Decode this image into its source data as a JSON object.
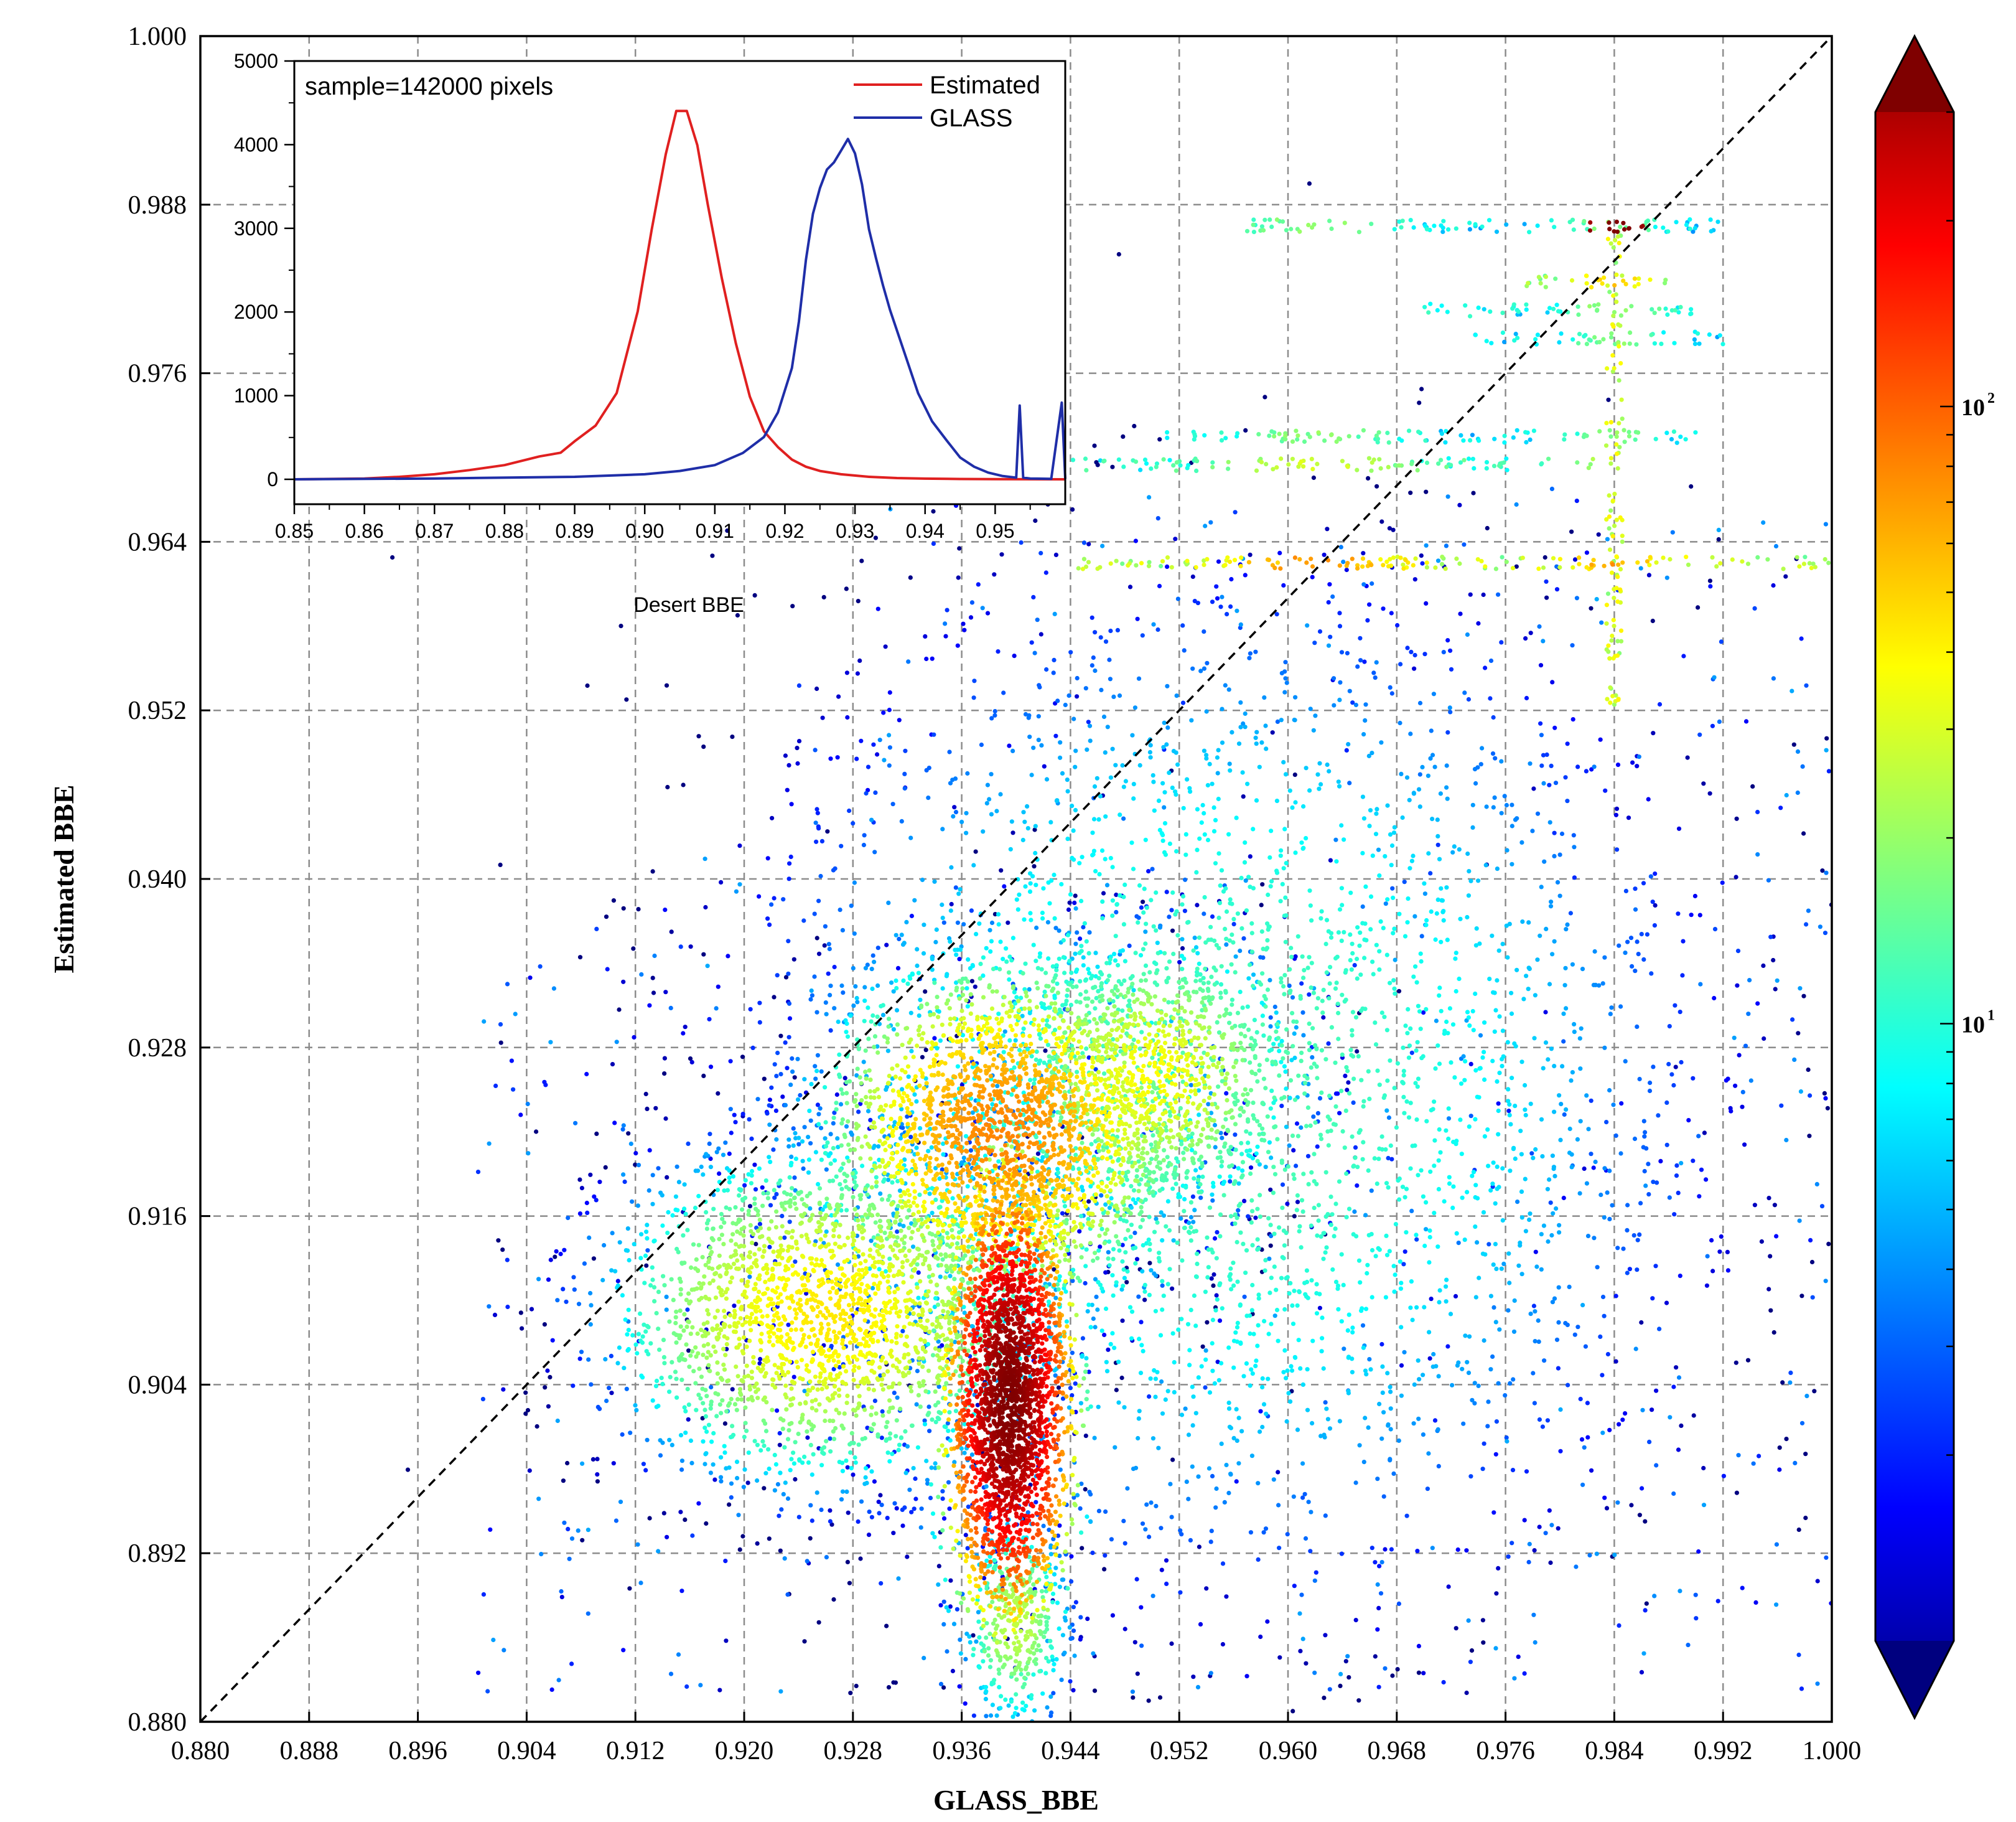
{
  "chart_data": [
    {
      "type": "scatter",
      "title": "",
      "xlabel": "GLASS_BBE",
      "ylabel": "Estimated BBE",
      "xlim": [
        0.88,
        1.0
      ],
      "ylim": [
        0.88,
        1.0
      ],
      "x_ticks": [
        "0.880",
        "0.888",
        "0.896",
        "0.904",
        "0.912",
        "0.920",
        "0.928",
        "0.936",
        "0.944",
        "0.952",
        "0.960",
        "0.968",
        "0.976",
        "0.984",
        "0.992",
        "1.000"
      ],
      "y_ticks": [
        "0.880",
        "0.892",
        "0.904",
        "0.916",
        "0.928",
        "0.940",
        "0.952",
        "0.964",
        "0.976",
        "0.988",
        "1.000"
      ],
      "grid": true,
      "reference_line": "1:1",
      "colorbar": {
        "scale": "log",
        "ticks": [
          {
            "base": "10",
            "exp": "1",
            "value": 10
          },
          {
            "base": "10",
            "exp": "2",
            "value": 100
          }
        ],
        "range": [
          1,
          300
        ],
        "extend": "both"
      },
      "density_clusters": [
        {
          "x": 0.9395,
          "y": 0.903,
          "sx": 0.0022,
          "sy": 0.0075,
          "density": 300,
          "n": 2600
        },
        {
          "x": 0.939,
          "y": 0.922,
          "sx": 0.0065,
          "sy": 0.006,
          "density": 70,
          "n": 2200
        },
        {
          "x": 0.926,
          "y": 0.909,
          "sx": 0.008,
          "sy": 0.006,
          "density": 40,
          "n": 2200
        },
        {
          "x": 0.95,
          "y": 0.926,
          "sx": 0.0055,
          "sy": 0.005,
          "density": 35,
          "n": 1100
        },
        {
          "x": 0.955,
          "y": 0.925,
          "sx": 0.018,
          "sy": 0.018,
          "density": 14,
          "n": 3000
        },
        {
          "x": 0.94,
          "y": 0.887,
          "sx": 0.002,
          "sy": 0.004,
          "density": 25,
          "n": 400
        }
      ],
      "sparse_region": {
        "xmin": 0.9,
        "xmax": 1.0,
        "ymin": 0.882,
        "ymax": 0.968,
        "density": 3,
        "n": 900
      },
      "horizontal_streaks": [
        {
          "y": 0.9625,
          "x_from": 0.944,
          "x_to": 1.0,
          "density": 40
        },
        {
          "y": 0.9695,
          "x_from": 0.944,
          "x_to": 0.983,
          "density": 18
        },
        {
          "y": 0.9715,
          "x_from": 0.951,
          "x_to": 0.99,
          "density": 12
        },
        {
          "y": 0.9785,
          "x_from": 0.973,
          "x_to": 0.992,
          "density": 12
        },
        {
          "y": 0.9805,
          "x_from": 0.97,
          "x_to": 0.99,
          "density": 14
        },
        {
          "y": 0.9825,
          "x_from": 0.977,
          "x_to": 0.988,
          "density": 30
        },
        {
          "y": 0.9865,
          "x_from": 0.957,
          "x_to": 0.992,
          "density": 12
        },
        {
          "y": 0.9865,
          "x_from": 0.982,
          "x_to": 0.987,
          "density": 250
        }
      ],
      "vertical_streaks": [
        {
          "x": 0.984,
          "y_from": 0.952,
          "y_to": 0.986,
          "density": 35
        }
      ]
    },
    {
      "type": "line",
      "title": "",
      "annotation": "sample=142000 pixels",
      "xlabel": "Desert BBE",
      "ylabel": "",
      "xlim": [
        0.85,
        0.96
      ],
      "ylim": [
        0,
        5000
      ],
      "x_ticks": [
        "0.85",
        "0.86",
        "0.87",
        "0.88",
        "0.89",
        "0.90",
        "0.91",
        "0.92",
        "0.93",
        "0.94",
        "0.95"
      ],
      "y_ticks": [
        "0",
        "1000",
        "2000",
        "3000",
        "4000",
        "5000"
      ],
      "legend": "top-right",
      "series": [
        {
          "name": "Estimated",
          "color": "#e02020",
          "x": [
            0.85,
            0.86,
            0.865,
            0.87,
            0.875,
            0.88,
            0.885,
            0.888,
            0.89,
            0.893,
            0.896,
            0.899,
            0.901,
            0.903,
            0.9045,
            0.906,
            0.9075,
            0.909,
            0.911,
            0.913,
            0.915,
            0.917,
            0.919,
            0.921,
            0.923,
            0.925,
            0.928,
            0.932,
            0.936,
            0.94,
            0.945,
            0.95,
            0.96
          ],
          "y": [
            0,
            10,
            30,
            60,
            110,
            170,
            250,
            320,
            430,
            620,
            1050,
            2000,
            3000,
            3900,
            4400,
            4380,
            4000,
            3300,
            2400,
            1600,
            1000,
            600,
            380,
            230,
            150,
            100,
            60,
            30,
            15,
            8,
            4,
            2,
            0
          ]
        },
        {
          "name": "GLASS",
          "color": "#1f2ea8",
          "x": [
            0.85,
            0.87,
            0.89,
            0.9,
            0.905,
            0.91,
            0.914,
            0.917,
            0.919,
            0.921,
            0.922,
            0.923,
            0.924,
            0.925,
            0.926,
            0.927,
            0.928,
            0.929,
            0.93,
            0.931,
            0.932,
            0.933,
            0.934,
            0.935,
            0.937,
            0.939,
            0.941,
            0.943,
            0.945,
            0.947,
            0.949,
            0.951,
            0.953,
            0.9535,
            0.954,
            0.9545,
            0.955,
            0.956,
            0.958,
            0.9595,
            0.96
          ],
          "y": [
            0,
            10,
            30,
            60,
            100,
            170,
            300,
            520,
            800,
            1300,
            1900,
            2600,
            3200,
            3500,
            3700,
            3800,
            3900,
            4050,
            3900,
            3500,
            3000,
            2650,
            2300,
            2000,
            1500,
            1050,
            700,
            450,
            280,
            150,
            80,
            40,
            20,
            900,
            20,
            15,
            10,
            8,
            5,
            900,
            5
          ]
        }
      ]
    }
  ]
}
